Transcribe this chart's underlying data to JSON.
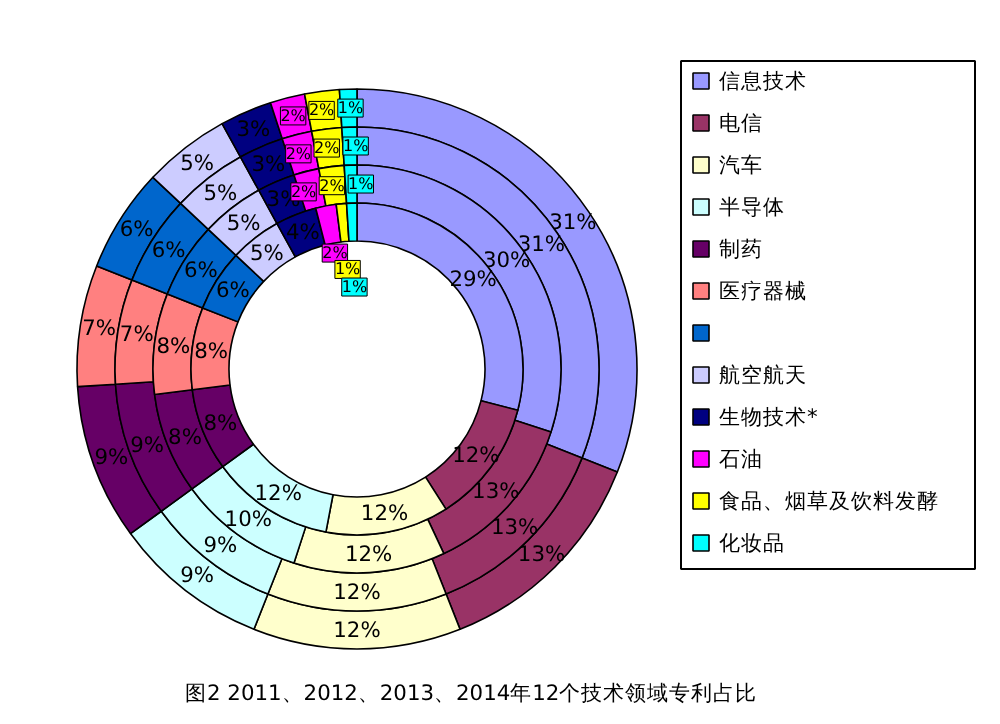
{
  "chart_data": {
    "type": "donut",
    "categories": [
      "信息技术",
      "电信",
      "汽车",
      "半导体",
      "制药",
      "医疗器械",
      null,
      "航空航天",
      "生物技术*",
      "石油",
      "食品、烟草及饮料发酵",
      "化妆品"
    ],
    "colors": [
      "#9999ff",
      "#993366",
      "#ffffcc",
      "#ccffff",
      "#660066",
      "#ff8080",
      "#0066cc",
      "#ccccff",
      "#000080",
      "#ff00ff",
      "#ffff00",
      "#00ffff"
    ],
    "series": [
      {
        "values": [
          31,
          13,
          12,
          9,
          9,
          7,
          6,
          5,
          3,
          2,
          2,
          1
        ],
        "value_labels": [
          "31%",
          "13%",
          "12%",
          "9%",
          "9%",
          "7%",
          "6%",
          "5%",
          "3%",
          "2%",
          "2%",
          "1%"
        ]
      },
      {
        "values": [
          31,
          13,
          12,
          9,
          9,
          7,
          6,
          5,
          3,
          2,
          2,
          1
        ],
        "value_labels": [
          "31%",
          "13%",
          "12%",
          "9%",
          "9%",
          "7%",
          "6%",
          "5%",
          "3%",
          "2%",
          "2%",
          "1%"
        ]
      },
      {
        "values": [
          30,
          13,
          12,
          10,
          8,
          8,
          6,
          5,
          3,
          2,
          2,
          1
        ],
        "value_labels": [
          "30%",
          "13%",
          "12%",
          "10%",
          "8%",
          "8%",
          "6%",
          "5%",
          "3%",
          "2%",
          "2%",
          "1%"
        ]
      },
      {
        "values": [
          29,
          12,
          12,
          12,
          8,
          8,
          6,
          5,
          4,
          2,
          1,
          1
        ],
        "value_labels": [
          "29%",
          "12%",
          "12%",
          "12%",
          "8%",
          "8%",
          "6%",
          "5%",
          "4%",
          "2%",
          "1%",
          "1%"
        ]
      }
    ],
    "legend": "right",
    "annotations": [
      "图2 2011、2012、2013、2014年12个技术领域专利占比"
    ]
  }
}
